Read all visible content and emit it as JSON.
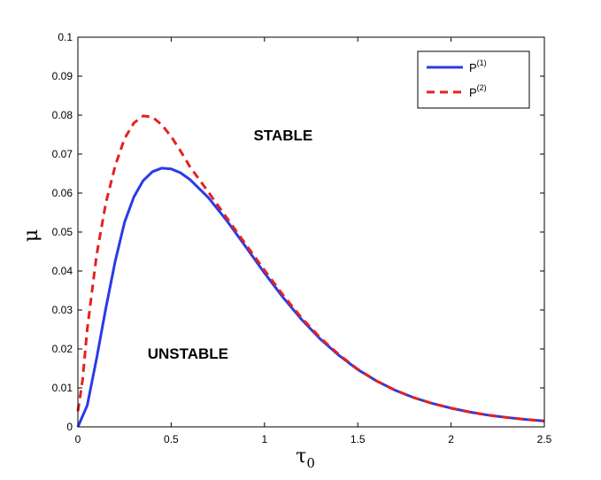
{
  "chart_data": {
    "type": "line",
    "xlabel": "τ",
    "xlabel_subscript": "0",
    "ylabel": "μ",
    "xlim": [
      0,
      2.5
    ],
    "ylim": [
      0,
      0.1
    ],
    "xticks": [
      0,
      0.5,
      1,
      1.5,
      2,
      2.5
    ],
    "xtick_labels": [
      "0",
      "0.5",
      "1",
      "1.5",
      "2",
      "2.5"
    ],
    "yticks": [
      0,
      0.01,
      0.02,
      0.03,
      0.04,
      0.05,
      0.06,
      0.07,
      0.08,
      0.09,
      0.1
    ],
    "ytick_labels": [
      "0",
      "0.01",
      "0.02",
      "0.03",
      "0.04",
      "0.05",
      "0.06",
      "0.07",
      "0.08",
      "0.09",
      "0.1"
    ],
    "grid": false,
    "legend_placement": "top-right",
    "annotations": [
      {
        "text": "STABLE",
        "x": 1.1,
        "y": 0.0735
      },
      {
        "text": "UNSTABLE",
        "x": 0.59,
        "y": 0.0175
      }
    ],
    "series": [
      {
        "name": "P",
        "name_superscript": "(1)",
        "color": "#2a3be6",
        "dash": "solid",
        "x": [
          0,
          0.05,
          0.1,
          0.15,
          0.2,
          0.25,
          0.3,
          0.35,
          0.4,
          0.45,
          0.5,
          0.55,
          0.6,
          0.7,
          0.8,
          0.9,
          1.0,
          1.1,
          1.2,
          1.3,
          1.4,
          1.5,
          1.6,
          1.7,
          1.8,
          1.9,
          2.0,
          2.1,
          2.2,
          2.3,
          2.4,
          2.5
        ],
        "y": [
          0,
          0.0055,
          0.0175,
          0.0305,
          0.0425,
          0.0525,
          0.059,
          0.0632,
          0.0655,
          0.0664,
          0.0662,
          0.0652,
          0.0635,
          0.0588,
          0.0528,
          0.0462,
          0.0395,
          0.0332,
          0.0275,
          0.0225,
          0.0183,
          0.0147,
          0.0118,
          0.0094,
          0.0075,
          0.006,
          0.0048,
          0.0038,
          0.003,
          0.0024,
          0.0019,
          0.0015
        ]
      },
      {
        "name": "P",
        "name_superscript": "(2)",
        "color": "#e62020",
        "dash": "dashed",
        "x": [
          0,
          0.025,
          0.05,
          0.1,
          0.15,
          0.2,
          0.25,
          0.3,
          0.35,
          0.4,
          0.45,
          0.5,
          0.55,
          0.6,
          0.7,
          0.8,
          0.9,
          1.0,
          1.1,
          1.2,
          1.3,
          1.4,
          1.5,
          1.6,
          1.7,
          1.8,
          1.9,
          2.0,
          2.1,
          2.2,
          2.3,
          2.4,
          2.5
        ],
        "y": [
          0.004,
          0.012,
          0.025,
          0.044,
          0.0575,
          0.067,
          0.074,
          0.078,
          0.0798,
          0.0795,
          0.0775,
          0.0745,
          0.0708,
          0.0668,
          0.0602,
          0.0535,
          0.0468,
          0.0402,
          0.0338,
          0.0279,
          0.0228,
          0.0185,
          0.0148,
          0.0118,
          0.0094,
          0.0075,
          0.006,
          0.0048,
          0.0038,
          0.003,
          0.0024,
          0.0019,
          0.0015
        ]
      }
    ]
  }
}
